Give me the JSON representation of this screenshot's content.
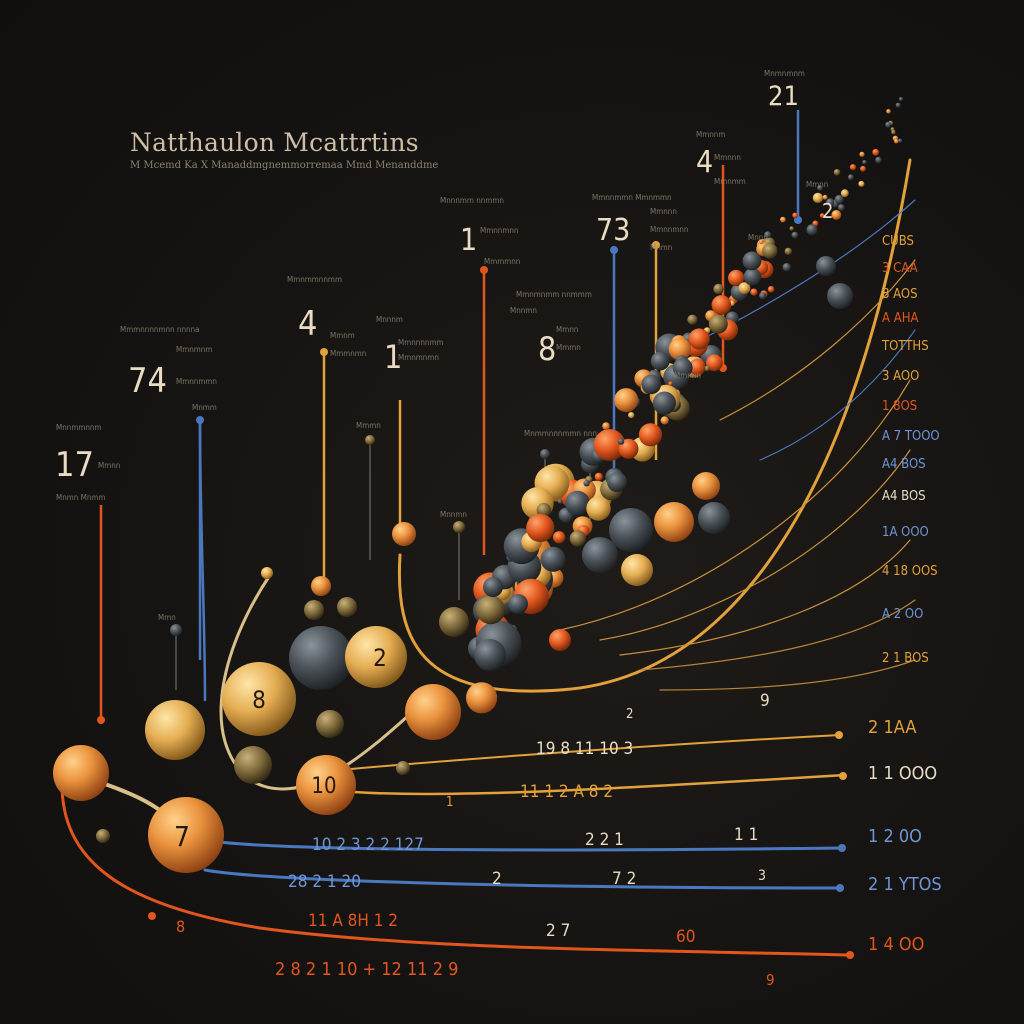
{
  "title": "Natthaulon Mcattrtins",
  "subtitle": "M Mcemd Ka X Manaddmgnemmorremaa Mmd Menanddme",
  "palette": {
    "background": "#161412",
    "orange": "#e9833a",
    "gold": "#e2a13a",
    "blue": "#4a78c0",
    "red_orange": "#e0561e",
    "slate": "#4a5055",
    "cream": "#d8c9a8"
  },
  "big_numbers": [
    {
      "id": "n74",
      "text": "74"
    },
    {
      "id": "n17",
      "text": "17"
    },
    {
      "id": "n4a",
      "text": "4"
    },
    {
      "id": "n1a",
      "text": "1"
    },
    {
      "id": "n1b",
      "text": "1"
    },
    {
      "id": "n8",
      "text": "8"
    },
    {
      "id": "n73",
      "text": "73"
    },
    {
      "id": "n4b",
      "text": "4"
    },
    {
      "id": "n21",
      "text": "21"
    },
    {
      "id": "n2top",
      "text": "2"
    }
  ],
  "ball_labels": [
    {
      "id": "b2",
      "text": "2"
    },
    {
      "id": "b8",
      "text": "8"
    },
    {
      "id": "b10",
      "text": "10"
    },
    {
      "id": "b7",
      "text": "7"
    }
  ],
  "right_column_labels": [
    "CUBS",
    "3 CAA",
    "8 AOS",
    "A AHA",
    "TOTTHS",
    "3 AOO",
    "1 8OS",
    "A 7 TOOO",
    "A4 BOS",
    "A4 BOS",
    "1A OOO",
    "4 18 OOS",
    "A 2 OO",
    "2 1 BOS",
    "2 1AA",
    "1 1 OOO",
    "1 2 0O",
    "2 1 YTOS",
    "1 4 OO"
  ],
  "row_labels": [
    {
      "id": "r9",
      "text": "9"
    },
    {
      "id": "r2a",
      "text": "2"
    },
    {
      "id": "r19",
      "text": "19 8 11 10 3"
    },
    {
      "id": "r11",
      "text": "11 1 2 A 8 2"
    },
    {
      "id": "r1",
      "text": "1"
    },
    {
      "id": "r10",
      "text": "10 2 3 2 2 127"
    },
    {
      "id": "r221",
      "text": "2 2 1"
    },
    {
      "id": "r1b",
      "text": "1 1"
    },
    {
      "id": "r28",
      "text": "28 2 1 20"
    },
    {
      "id": "r2b",
      "text": "2"
    },
    {
      "id": "r72",
      "text": "7 2"
    },
    {
      "id": "r3",
      "text": "3"
    },
    {
      "id": "r11b",
      "text": "11 A 8H 1 2"
    },
    {
      "id": "r27",
      "text": "2 7"
    },
    {
      "id": "r8red",
      "text": "8"
    },
    {
      "id": "r60",
      "text": "60"
    },
    {
      "id": "r2821",
      "text": "2 8 2 1 10 + 12 11 2 9"
    },
    {
      "id": "r9b",
      "text": "9"
    }
  ]
}
